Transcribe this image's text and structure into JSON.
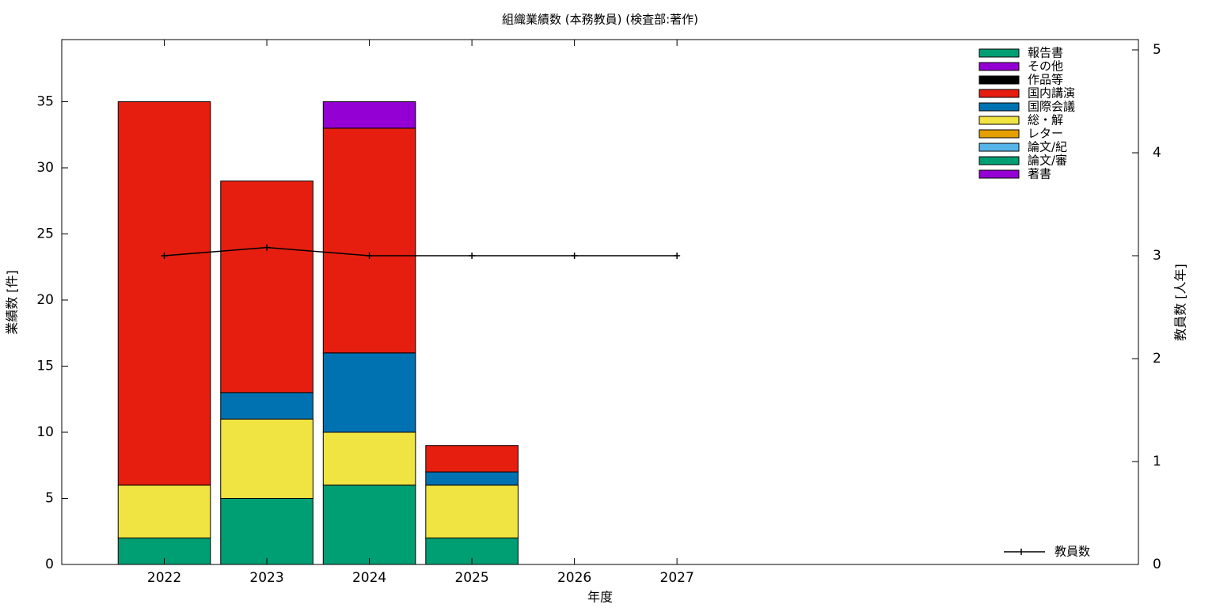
{
  "chart_data": {
    "type": "bar",
    "stacked": true,
    "title": "組織業績数 (本務教員) (検査部:著作)",
    "x_label": "年度",
    "y_label": "業績数 [件]",
    "y2_label": "教員数 [人年]",
    "x": [
      2022,
      2023,
      2024,
      2025,
      2026,
      2027
    ],
    "xlim": [
      2021,
      2031.5
    ],
    "xticks": [
      2022,
      2023,
      2024,
      2025,
      2026,
      2027
    ],
    "ylim": [
      0,
      39.7
    ],
    "yticks": [
      0,
      5,
      10,
      15,
      20,
      25,
      30,
      35
    ],
    "y2lim": [
      0,
      5.1
    ],
    "y2ticks": [
      0,
      1,
      2,
      3,
      4,
      5
    ],
    "series": [
      {
        "name": "報告書",
        "color": "#009e73",
        "values": [
          0,
          0,
          0,
          0,
          0,
          0
        ]
      },
      {
        "name": "その他",
        "color": "#9400d3",
        "values": [
          0,
          0,
          2,
          0,
          0,
          0
        ]
      },
      {
        "name": "作品等",
        "color": "#000000",
        "values": [
          0,
          0,
          0,
          0,
          0,
          0
        ]
      },
      {
        "name": "国内講演",
        "color": "#e51e10",
        "values": [
          29,
          16,
          17,
          2,
          0,
          0
        ]
      },
      {
        "name": "国際会議",
        "color": "#0072b2",
        "values": [
          0,
          2,
          6,
          1,
          0,
          0
        ]
      },
      {
        "name": "総・解",
        "color": "#f0e442",
        "values": [
          4,
          6,
          4,
          4,
          0,
          0
        ]
      },
      {
        "name": "レター",
        "color": "#e69f00",
        "values": [
          0,
          0,
          0,
          0,
          0,
          0
        ]
      },
      {
        "name": "論文/紀",
        "color": "#56b4e9",
        "values": [
          0,
          0,
          0,
          0,
          0,
          0
        ]
      },
      {
        "name": "論文/審",
        "color": "#009e73",
        "values": [
          2,
          5,
          6,
          2,
          0,
          0
        ]
      },
      {
        "name": "著書",
        "color": "#9400d3",
        "values": [
          0,
          0,
          0,
          0,
          0,
          0
        ]
      },
      {
        "name": "教員数",
        "type": "line",
        "axis": "y2",
        "color": "#000000",
        "values": [
          3,
          3.08,
          3,
          3,
          3,
          3
        ]
      }
    ]
  }
}
